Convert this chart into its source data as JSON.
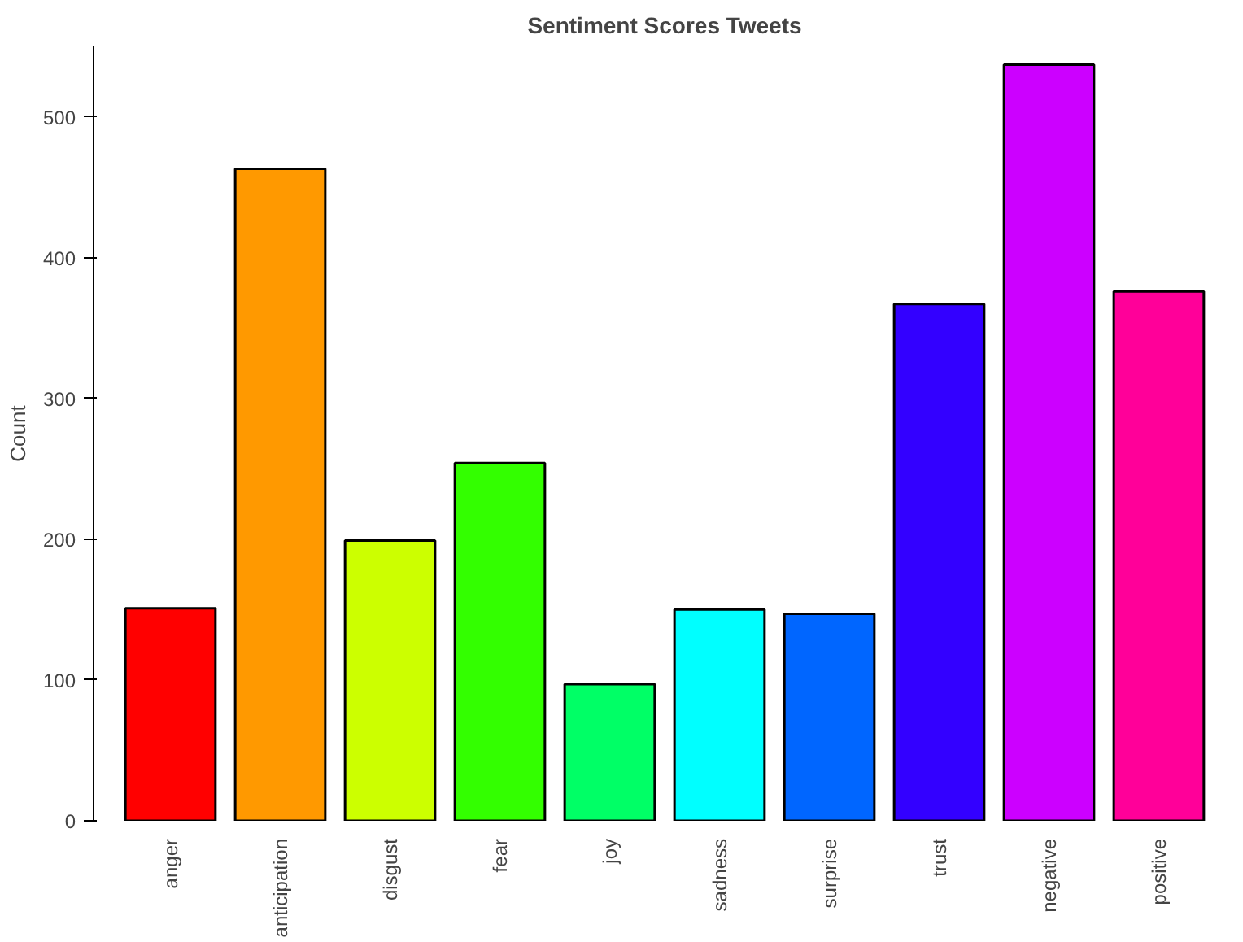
{
  "chart_data": {
    "type": "bar",
    "title": "Sentiment Scores Tweets",
    "ylabel": "Count",
    "categories": [
      "anger",
      "anticipation",
      "disgust",
      "fear",
      "joy",
      "sadness",
      "surprise",
      "trust",
      "negative",
      "positive"
    ],
    "values": [
      151,
      463,
      199,
      254,
      97,
      150,
      147,
      367,
      537,
      376
    ],
    "colors": [
      "#ff0000",
      "#ff9900",
      "#ccff00",
      "#33ff00",
      "#00ff66",
      "#00ffff",
      "#0066ff",
      "#3300ff",
      "#cc00ff",
      "#ff0099"
    ],
    "ylim": [
      0,
      550
    ],
    "yticks": [
      0,
      100,
      200,
      300,
      400,
      500
    ],
    "grid": false
  }
}
